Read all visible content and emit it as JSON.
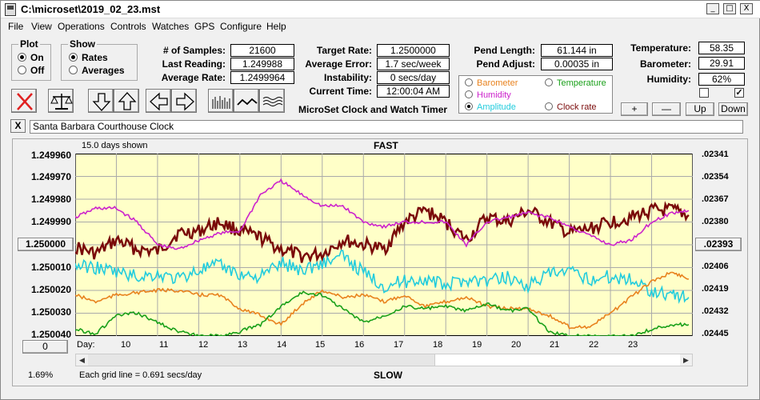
{
  "window": {
    "title": "C:\\microset\\2019_02_23.mst"
  },
  "window_buttons": {
    "minimize": "_",
    "maximize": "□",
    "close": "X"
  },
  "menu": [
    "File",
    "View",
    "Operations",
    "Controls",
    "Watches",
    "GPS",
    "Configure",
    "Help"
  ],
  "plot_group": {
    "title": "Plot",
    "options": [
      {
        "label": "On",
        "selected": true
      },
      {
        "label": "Off",
        "selected": false
      }
    ]
  },
  "show_group": {
    "title": "Show",
    "options": [
      {
        "label": "Rates",
        "selected": true
      },
      {
        "label": "Averages",
        "selected": false
      }
    ]
  },
  "stats": {
    "samples_label": "# of Samples:",
    "samples": "21600",
    "last_label": "Last Reading:",
    "last": "1.249988",
    "avg_label": "Average Rate:",
    "avg": "1.2499964",
    "target_label": "Target Rate:",
    "target": "1.2500000",
    "err_label": "Average Error:",
    "err": "1.7 sec/week",
    "instab_label": "Instability:",
    "instab": "0 secs/day",
    "time_label": "Current Time:",
    "time": "12:00:04 AM",
    "pendlen_label": "Pend Length:",
    "pendlen": "61.144 in",
    "pendadj_label": "Pend Adjust:",
    "pendadj": "0.00035 in",
    "temp_label": "Temperature:",
    "temp": "58.35",
    "baro_label": "Barometer:",
    "baro": "29.91",
    "humid_label": "Humidity:",
    "humid": "62%"
  },
  "app_caption": "MicroSet Clock and Watch Timer",
  "graph_legend": [
    {
      "label": "Barometer",
      "color": "#e8821e",
      "selected": false
    },
    {
      "label": "Temperature",
      "color": "#1aa01a",
      "selected": false
    },
    {
      "label": "Humidity",
      "color": "#cc22cc",
      "selected": false
    },
    {
      "label": "Amplitude",
      "color": "#22ccdd",
      "selected": true
    },
    {
      "label": "Clock rate",
      "color": "#7a0a0a",
      "selected": false
    }
  ],
  "adjust_buttons": {
    "plus": "+",
    "minus": "—",
    "up": "Up",
    "down": "Down"
  },
  "checkboxes": [
    {
      "checked": false
    },
    {
      "checked": true,
      "mark": "✓"
    }
  ],
  "clock_close": "X",
  "clock_name": "Santa Barbara Courthouse Clock",
  "graph": {
    "days_shown": "15.0 days shown",
    "top_label": "FAST",
    "bottom_label": "SLOW",
    "grid_note": "Each grid line = 0.691 secs/day",
    "zoom_pct": "1.69%",
    "day_prefix": "Day:",
    "left_button": "1.250000",
    "bottom_button": "0",
    "right_button": ".02393",
    "left_ticks": [
      "1.249960",
      "1.249970",
      "1.249980",
      "1.249990",
      "1.250010",
      "1.250020",
      "1.250030",
      "1.250040"
    ],
    "right_ticks": [
      ".02341",
      ".02354",
      ".02367",
      ".02380",
      ".02406",
      ".02419",
      ".02432",
      ".02445"
    ],
    "days": [
      "10",
      "11",
      "12",
      "13",
      "14",
      "15",
      "16",
      "17",
      "18",
      "19",
      "20",
      "21",
      "22",
      "23"
    ]
  },
  "chart_data": {
    "type": "line",
    "x_range": [
      9,
      24
    ],
    "ylim": [
      1.24996,
      1.25004
    ],
    "y_right_ticks": [
      ".02341",
      ".02354",
      ".02367",
      ".02380",
      ".02393",
      ".02406",
      ".02419",
      ".02432",
      ".02445"
    ],
    "grid": true,
    "series": [
      {
        "name": "Clock rate",
        "color": "#7a0a0a",
        "x": [
          9,
          9.5,
          10,
          10.5,
          11,
          11.5,
          12,
          12.5,
          13,
          13.5,
          14,
          14.5,
          15,
          15.5,
          16,
          16.5,
          17,
          17.5,
          18,
          18.5,
          19,
          19.5,
          20,
          20.5,
          21,
          21.5,
          22,
          22.5,
          23,
          23.5,
          23.9
        ],
        "y": [
          1.250001,
          1.250004,
          1.249998,
          1.250002,
          1.250003,
          1.249995,
          1.249994,
          1.24999,
          1.249994,
          1.249997,
          1.250002,
          1.250005,
          1.250004,
          1.249998,
          1.25,
          1.250002,
          1.24999,
          1.249985,
          1.24999,
          1.249998,
          1.249988,
          1.24999,
          1.249985,
          1.24999,
          1.249995,
          1.249993,
          1.24999,
          1.249988,
          1.249985,
          1.249985,
          1.249987
        ]
      },
      {
        "name": "Humidity",
        "color": "#cc22cc",
        "x": [
          9,
          9.5,
          10,
          10.5,
          11,
          11.5,
          12,
          12.5,
          13,
          13.5,
          14,
          14.5,
          15,
          15.5,
          16,
          16.5,
          17,
          17.5,
          18,
          18.5,
          19,
          19.5,
          20,
          20.5,
          21,
          21.5,
          22,
          22.5,
          23,
          23.5,
          23.9
        ],
        "y": [
          1.249988,
          1.249984,
          1.249984,
          1.24999,
          1.25,
          1.250002,
          1.249998,
          1.249995,
          1.249994,
          1.249978,
          1.249972,
          1.249978,
          1.249983,
          1.249983,
          1.24999,
          1.249992,
          1.24999,
          1.24999,
          1.24999,
          1.25,
          1.24999,
          1.249988,
          1.249986,
          1.249988,
          1.249992,
          1.249996,
          1.25,
          1.249998,
          1.24999,
          1.249986,
          1.249985
        ]
      },
      {
        "name": "Amplitude",
        "color": "#22ccdd",
        "x": [
          9,
          9.5,
          10,
          10.5,
          11,
          11.5,
          12,
          12.5,
          13,
          13.5,
          14,
          14.5,
          15,
          15.5,
          16,
          16.5,
          17,
          17.5,
          18,
          18.5,
          19,
          19.5,
          20,
          20.5,
          21,
          21.5,
          22,
          22.5,
          23,
          23.5,
          23.9
        ],
        "y": [
          1.250009,
          1.25001,
          1.250012,
          1.250014,
          1.250013,
          1.250015,
          1.250011,
          1.250009,
          1.250013,
          1.250014,
          1.250008,
          1.250011,
          1.250008,
          1.250005,
          1.250012,
          1.250018,
          1.250016,
          1.250015,
          1.250018,
          1.250015,
          1.250016,
          1.250014,
          1.250018,
          1.250013,
          1.250012,
          1.250015,
          1.250014,
          1.250015,
          1.25002,
          1.250022,
          1.250023
        ]
      },
      {
        "name": "Barometer",
        "color": "#e8821e",
        "x": [
          9,
          9.5,
          10,
          10.5,
          11,
          11.5,
          12,
          12.5,
          13,
          13.5,
          14,
          14.5,
          15,
          15.5,
          16,
          16.5,
          17,
          17.5,
          18,
          18.5,
          19,
          19.5,
          20,
          20.5,
          21,
          21.5,
          22,
          22.5,
          23,
          23.5,
          23.9
        ],
        "y": [
          1.250022,
          1.250025,
          1.250022,
          1.250021,
          1.25002,
          1.25002,
          1.250022,
          1.250022,
          1.250028,
          1.250031,
          1.250035,
          1.250026,
          1.25002,
          1.250023,
          1.250022,
          1.250025,
          1.250022,
          1.250027,
          1.250025,
          1.250023,
          1.250027,
          1.250028,
          1.250028,
          1.250031,
          1.250036,
          1.250036,
          1.25003,
          1.250023,
          1.250016,
          1.250012,
          1.250015
        ]
      },
      {
        "name": "Temperature",
        "color": "#1aa01a",
        "x": [
          9,
          9.5,
          10,
          10.5,
          11,
          11.5,
          12,
          12.5,
          13,
          13.5,
          14,
          14.5,
          15,
          15.5,
          16,
          16.5,
          17,
          17.5,
          18,
          18.5,
          19,
          19.5,
          20,
          20.5,
          21,
          21.5,
          22,
          22.5,
          23,
          23.5,
          23.9
        ],
        "y": [
          1.250037,
          1.250039,
          1.250031,
          1.25003,
          1.250034,
          1.250038,
          1.25004,
          1.25004,
          1.250038,
          1.250035,
          1.250027,
          1.250021,
          1.250022,
          1.250028,
          1.250034,
          1.250031,
          1.250027,
          1.250028,
          1.250027,
          1.250029,
          1.250026,
          1.250029,
          1.250028,
          1.250038,
          1.25004,
          1.25004,
          1.25004,
          1.25004,
          1.250037,
          1.250035,
          1.250035
        ]
      }
    ]
  }
}
